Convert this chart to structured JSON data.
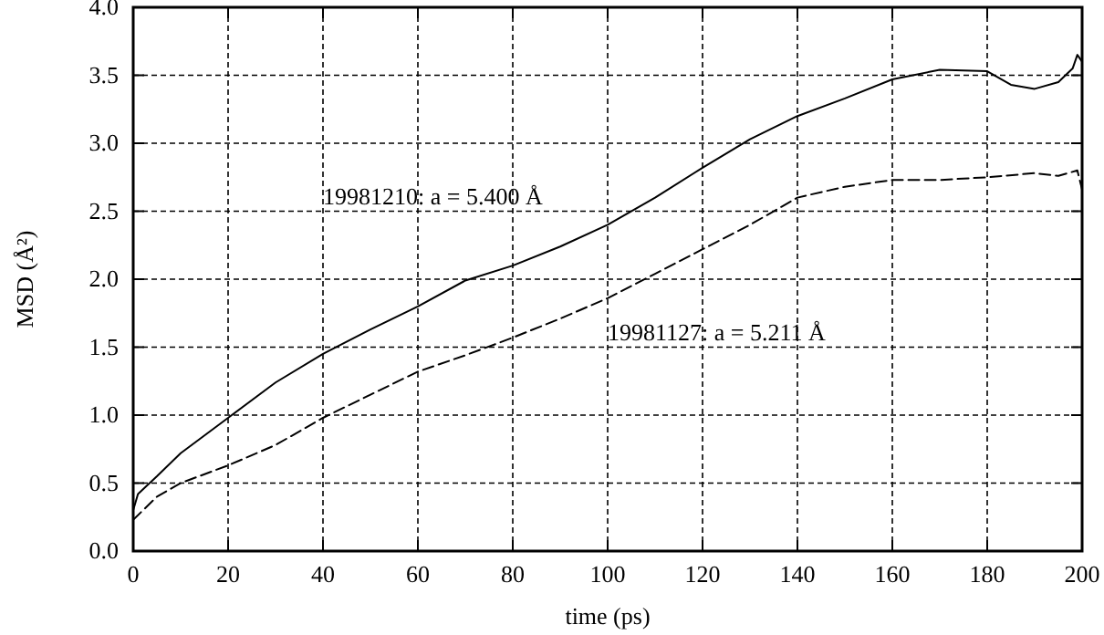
{
  "chart_data": {
    "type": "line",
    "xlabel": "time (ps)",
    "ylabel": "MSD (Å²)",
    "xlim": [
      0,
      200
    ],
    "ylim": [
      0,
      4
    ],
    "xticks": [
      0,
      20,
      40,
      60,
      80,
      100,
      120,
      140,
      160,
      180,
      200
    ],
    "yticks": [
      {
        "value": 0,
        "label": "0.0"
      },
      {
        "value": 0.5,
        "label": "0.5"
      },
      {
        "value": 1,
        "label": "1.0"
      },
      {
        "value": 1.5,
        "label": "1.5"
      },
      {
        "value": 2,
        "label": "2.0"
      },
      {
        "value": 2.5,
        "label": "2.5"
      },
      {
        "value": 3,
        "label": "3.0"
      },
      {
        "value": 3.5,
        "label": "3.5"
      },
      {
        "value": 4,
        "label": "4.0"
      }
    ],
    "grid": true,
    "legend": false,
    "marker": "none",
    "series": [
      {
        "name": "19981210: a = 5.400 Å",
        "color": "#000000",
        "line_style": "solid",
        "x": [
          0,
          1,
          5,
          10,
          20,
          30,
          40,
          50,
          60,
          70,
          80,
          90,
          100,
          110,
          120,
          130,
          140,
          150,
          160,
          170,
          180,
          185,
          190,
          195,
          198,
          199,
          200
        ],
        "values": [
          0.3,
          0.42,
          0.55,
          0.72,
          0.98,
          1.24,
          1.45,
          1.63,
          1.8,
          1.99,
          2.1,
          2.24,
          2.4,
          2.6,
          2.82,
          3.03,
          3.2,
          3.33,
          3.47,
          3.54,
          3.53,
          3.43,
          3.4,
          3.45,
          3.55,
          3.65,
          3.6
        ]
      },
      {
        "name": "19981127: a = 5.211 Å",
        "color": "#000000",
        "line_style": "dashed",
        "x": [
          0,
          5,
          10,
          20,
          30,
          40,
          50,
          60,
          70,
          80,
          90,
          100,
          110,
          120,
          130,
          140,
          150,
          160,
          170,
          180,
          190,
          195,
          199,
          200
        ],
        "values": [
          0.23,
          0.4,
          0.5,
          0.63,
          0.78,
          0.98,
          1.15,
          1.32,
          1.44,
          1.57,
          1.71,
          1.86,
          2.04,
          2.22,
          2.4,
          2.6,
          2.68,
          2.73,
          2.73,
          2.75,
          2.78,
          2.76,
          2.8,
          2.66
        ]
      }
    ]
  }
}
